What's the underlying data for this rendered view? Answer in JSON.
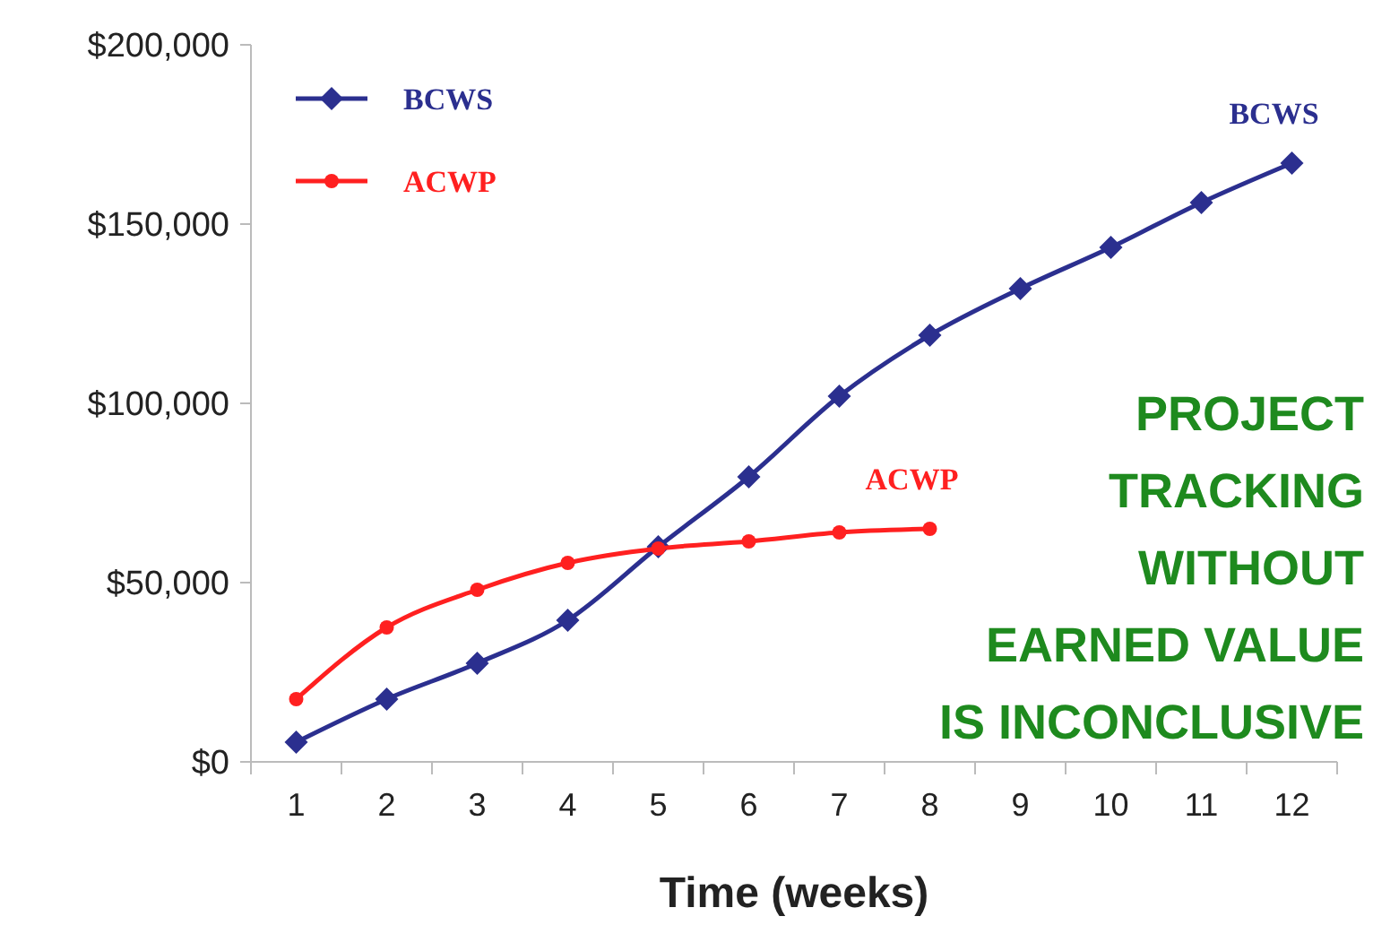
{
  "chart_data": {
    "type": "line",
    "xlabel": "Time (weeks)",
    "categories": [
      "1",
      "2",
      "3",
      "4",
      "5",
      "6",
      "7",
      "8",
      "9",
      "10",
      "11",
      "12"
    ],
    "ylim": [
      0,
      200000
    ],
    "yticks": [
      {
        "value": 0,
        "label": "$0"
      },
      {
        "value": 50000,
        "label": "$50,000"
      },
      {
        "value": 100000,
        "label": "$100,000"
      },
      {
        "value": 150000,
        "label": "$150,000"
      },
      {
        "value": 200000,
        "label": "$200,000"
      }
    ],
    "series": [
      {
        "name": "BCWS",
        "color": "#2b2f8f",
        "marker": "diamond",
        "values": [
          5500,
          17500,
          27500,
          39500,
          60000,
          79500,
          102000,
          119000,
          132000,
          143500,
          156000,
          167000
        ]
      },
      {
        "name": "ACWP",
        "color": "#ff2020",
        "marker": "circle",
        "values": [
          17500,
          37500,
          48000,
          55500,
          59500,
          61500,
          64000,
          65000,
          null,
          null,
          null,
          null
        ]
      }
    ],
    "annotations": [
      {
        "text": "BCWS",
        "x": "12",
        "y": 167000
      },
      {
        "text": "ACWP",
        "x": "8",
        "y": 65000
      },
      "PROJECT TRACKING WITHOUT EARNED VALUE IS INCONCLUSIVE"
    ],
    "legend": "top left",
    "grid": false
  }
}
